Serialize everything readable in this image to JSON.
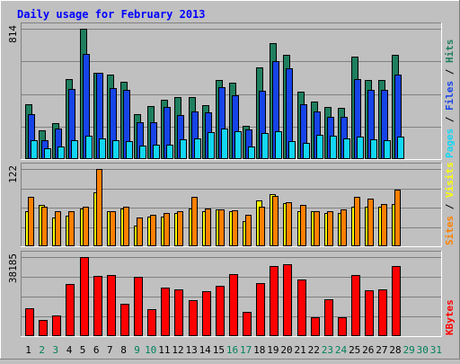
{
  "chart_data": [
    {
      "panel": "hits-files-pages",
      "type": "bar",
      "title": "Daily usage for February 2013",
      "max_label": "814",
      "ylim": [
        0,
        814
      ],
      "legend_labels": [
        "Pages",
        "Files",
        "Hits"
      ],
      "categories": [
        "1",
        "2",
        "3",
        "4",
        "5",
        "6",
        "7",
        "8",
        "9",
        "10",
        "11",
        "12",
        "13",
        "14",
        "15",
        "16",
        "17",
        "18",
        "19",
        "20",
        "21",
        "22",
        "23",
        "24",
        "25",
        "26",
        "27",
        "28"
      ],
      "series": [
        {
          "name": "Hits",
          "color": "#1f7f5e",
          "values": [
            345,
            180,
            225,
            500,
            814,
            540,
            530,
            485,
            280,
            330,
            370,
            390,
            385,
            335,
            495,
            475,
            205,
            570,
            725,
            650,
            420,
            360,
            325,
            320,
            640,
            495,
            495,
            650
          ]
        },
        {
          "name": "Files",
          "color": "#1644e8",
          "values": [
            280,
            120,
            190,
            440,
            655,
            540,
            445,
            435,
            230,
            230,
            325,
            275,
            300,
            290,
            450,
            400,
            185,
            425,
            610,
            565,
            345,
            300,
            265,
            265,
            500,
            435,
            435,
            530
          ]
        },
        {
          "name": "Pages",
          "color": "#12d6f4",
          "values": [
            120,
            70,
            80,
            120,
            145,
            130,
            120,
            110,
            85,
            90,
            90,
            125,
            130,
            170,
            190,
            175,
            80,
            165,
            175,
            110,
            100,
            150,
            145,
            130,
            140,
            125,
            120,
            140
          ]
        }
      ]
    },
    {
      "panel": "sites-visits",
      "type": "bar",
      "max_label": "122",
      "ylim": [
        0,
        122
      ],
      "legend_labels": [
        "Sites",
        "Visits"
      ],
      "categories": [
        "1",
        "2",
        "3",
        "4",
        "5",
        "6",
        "7",
        "8",
        "9",
        "10",
        "11",
        "12",
        "13",
        "14",
        "15",
        "16",
        "17",
        "18",
        "19",
        "20",
        "21",
        "22",
        "23",
        "24",
        "25",
        "26",
        "27",
        "28"
      ],
      "series": [
        {
          "name": "Visits",
          "color": "#ffff00",
          "values": [
            55,
            65,
            45,
            48,
            60,
            85,
            55,
            60,
            32,
            47,
            47,
            53,
            60,
            56,
            58,
            55,
            40,
            72,
            82,
            68,
            55,
            55,
            52,
            52,
            62,
            62,
            62,
            66
          ]
        },
        {
          "name": "Sites",
          "color": "#ff8000",
          "values": [
            78,
            62,
            55,
            55,
            63,
            122,
            55,
            62,
            45,
            50,
            52,
            56,
            78,
            60,
            58,
            57,
            50,
            62,
            80,
            70,
            65,
            56,
            55,
            58,
            78,
            75,
            66,
            90
          ]
        }
      ]
    },
    {
      "panel": "kbytes",
      "type": "bar",
      "max_label": "38185",
      "ylim": [
        0,
        38185
      ],
      "legend_labels": [
        "KBytes"
      ],
      "categories": [
        "1",
        "2",
        "3",
        "4",
        "5",
        "6",
        "7",
        "8",
        "9",
        "10",
        "11",
        "12",
        "13",
        "14",
        "15",
        "16",
        "17",
        "18",
        "19",
        "20",
        "21",
        "22",
        "23",
        "24",
        "25",
        "26",
        "27",
        "28"
      ],
      "series": [
        {
          "name": "KBytes",
          "color": "#ff0000",
          "values": [
            13500,
            8000,
            10000,
            25000,
            38185,
            29000,
            29500,
            15500,
            28500,
            13000,
            23500,
            22500,
            17500,
            21500,
            24500,
            30000,
            11500,
            25500,
            34000,
            34500,
            27500,
            9000,
            18000,
            9000,
            29500,
            22000,
            22500,
            34000
          ]
        }
      ]
    }
  ],
  "x_axis": {
    "day_labels": [
      "1",
      "2",
      "3",
      "4",
      "5",
      "6",
      "7",
      "8",
      "9",
      "10",
      "11",
      "12",
      "13",
      "14",
      "15",
      "16",
      "17",
      "18",
      "19",
      "20",
      "21",
      "22",
      "23",
      "24",
      "25",
      "26",
      "27",
      "28",
      "29",
      "30",
      "31"
    ],
    "weekend_days": [
      2,
      3,
      9,
      10,
      16,
      17,
      23,
      24,
      29,
      30,
      31
    ],
    "weekday_color": "#000000",
    "weekend_color": "#00805c"
  },
  "colors": {
    "background": "#c0c0c0",
    "plot": "#c0c0c0",
    "title": "#0000ff",
    "gridline": "#808080"
  }
}
